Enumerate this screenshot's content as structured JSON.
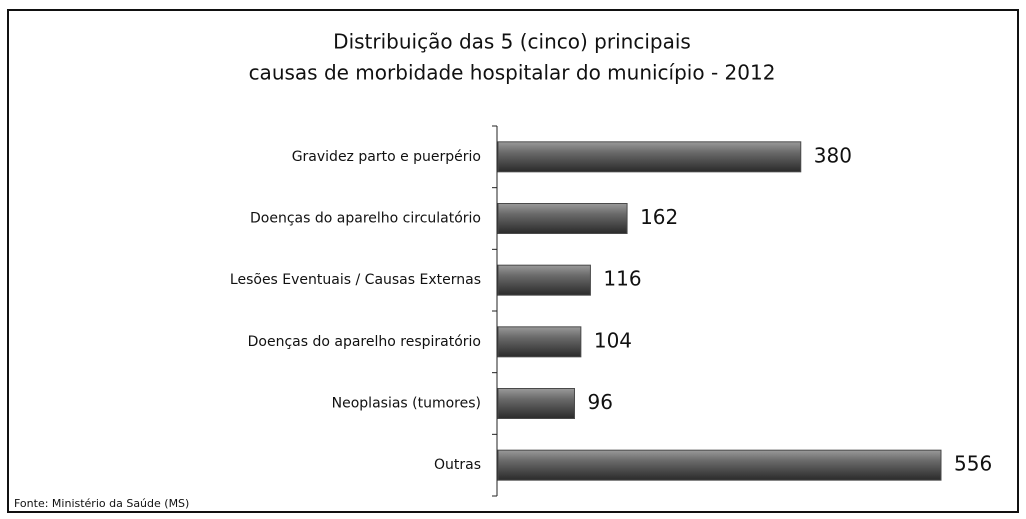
{
  "chart_data": {
    "type": "barh",
    "title": [
      "Distribuição das 5 (cinco) principais",
      "causas de morbidade hospitalar do município - 2012"
    ],
    "categories": [
      "Gravidez parto e puerpério",
      "Doenças do aparelho circulatório",
      "Lesões Eventuais / Causas Externas",
      "Doenças do aparelho respiratório",
      "Neoplasias (tumores)",
      "Outras"
    ],
    "values": [
      380,
      162,
      116,
      104,
      96,
      556
    ],
    "color": "#4a4a4a",
    "source": "Fonte: Ministério da Saúde (MS)"
  }
}
